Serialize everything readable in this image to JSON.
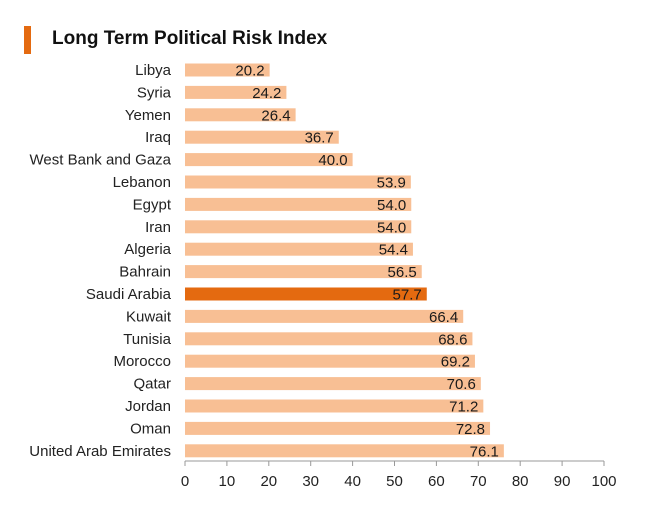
{
  "colors": {
    "bar": "#F8BF94",
    "highlight": "#E46A10",
    "accent": "#E46A10",
    "axis": "#999999"
  },
  "chart_data": {
    "type": "bar",
    "orientation": "horizontal",
    "title": "Long Term Political Risk Index",
    "xlabel": "",
    "ylabel": "",
    "xlim": [
      0,
      100
    ],
    "x_ticks": [
      0,
      10,
      20,
      30,
      40,
      50,
      60,
      70,
      80,
      90,
      100
    ],
    "grid": false,
    "highlight_category": "Saudi Arabia",
    "categories": [
      "Libya",
      "Syria",
      "Yemen",
      "Iraq",
      "West Bank and Gaza",
      "Lebanon",
      "Egypt",
      "Iran",
      "Algeria",
      "Bahrain",
      "Saudi Arabia",
      "Kuwait",
      "Tunisia",
      "Morocco",
      "Qatar",
      "Jordan",
      "Oman",
      "United Arab Emirates"
    ],
    "values": [
      20.2,
      24.2,
      26.4,
      36.7,
      40.0,
      53.9,
      54.0,
      54.0,
      54.4,
      56.5,
      57.7,
      66.4,
      68.6,
      69.2,
      70.6,
      71.2,
      72.8,
      76.1
    ],
    "value_labels": [
      "20.2",
      "24.2",
      "26.4",
      "36.7",
      "40.0",
      "53.9",
      "54.0",
      "54.0",
      "54.4",
      "56.5",
      "57.7",
      "66.4",
      "68.6",
      "69.2",
      "70.6",
      "71.2",
      "72.8",
      "76.1"
    ]
  }
}
